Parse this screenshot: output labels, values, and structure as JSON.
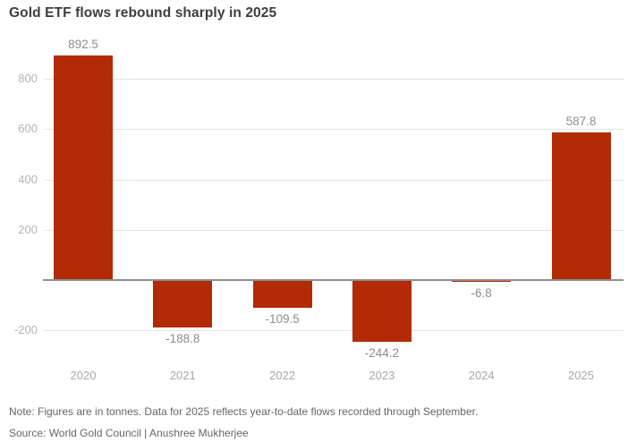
{
  "title": "Gold ETF flows rebound sharply in 2025",
  "note": "Note: Figures are in tonnes. Data for 2025 reflects year-to-date flows recorded through September.",
  "source": "Source: World Gold Council | Anushree Mukherjee",
  "colors": {
    "bar": "#b22b06",
    "title": "#3d3d3d",
    "gridline": "#e2e2e2",
    "zero_line": "#8f8f8f",
    "y_tick_label": "#b3b3b3",
    "x_tick_label": "#a8a8a8",
    "value_label": "#8c8c8c",
    "footnote": "#666666",
    "background": "#ffffff"
  },
  "chart_data": {
    "type": "bar",
    "title": "Gold ETF flows rebound sharply in 2025",
    "categories": [
      "2020",
      "2021",
      "2022",
      "2023",
      "2024",
      "2025"
    ],
    "values": [
      892.5,
      -188.8,
      -109.5,
      -244.2,
      -6.8,
      587.8
    ],
    "value_labels": [
      "892.5",
      "-188.8",
      "-109.5",
      "-244.2",
      "-6.8",
      "587.8"
    ],
    "unit": "tonnes",
    "ylim": [
      -280,
      950
    ],
    "yticks": [
      800,
      600,
      400,
      200,
      -200
    ],
    "ytick_labels": [
      "800",
      "600",
      "400",
      "200",
      "-200"
    ],
    "grid": "horizontal-only",
    "legend": "none",
    "xlabel": "",
    "ylabel": ""
  }
}
